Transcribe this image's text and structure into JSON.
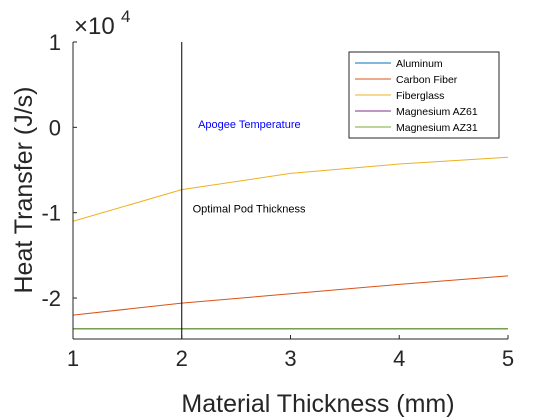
{
  "chart_data": {
    "type": "line",
    "title": "",
    "xlabel": "Material Thickness (mm)",
    "ylabel": "Heat Transfer (J/s)",
    "exponent": {
      "base": "×10",
      "power": "4"
    },
    "xlim": [
      1,
      5
    ],
    "ylim": [
      -24800,
      10000
    ],
    "scale_factor": 10000,
    "xticks": [
      1,
      2,
      3,
      4,
      5
    ],
    "yticks": [
      -20000,
      -10000,
      0,
      10000
    ],
    "xtick_labels": [
      "1",
      "2",
      "3",
      "4",
      "5"
    ],
    "ytick_labels": [
      "-2",
      "-1",
      "0",
      "1"
    ],
    "grid": false,
    "legend_position": "top-right",
    "x": [
      1,
      2,
      3,
      4,
      5
    ],
    "series": [
      {
        "name": "Aluminum",
        "color": "#0072BD",
        "values": [
          -23600,
          -23600,
          -23600,
          -23600,
          -23600
        ]
      },
      {
        "name": "Carbon Fiber",
        "color": "#D95319",
        "values": [
          -22000,
          -20600,
          -19500,
          -18400,
          -17400
        ]
      },
      {
        "name": "Fiberglass",
        "color": "#EDB120",
        "values": [
          -11000,
          -7300,
          -5400,
          -4300,
          -3500
        ]
      },
      {
        "name": "Magnesium AZ61",
        "color": "#7E2F8E",
        "values": [
          -23600,
          -23600,
          -23600,
          -23600,
          -23600
        ]
      },
      {
        "name": "Magnesium AZ31",
        "color": "#77AC30",
        "values": [
          -23600,
          -23600,
          -23600,
          -23600,
          -23600
        ]
      }
    ],
    "vline": {
      "x": 2,
      "color": "#000000"
    },
    "annotations": [
      {
        "text": "Apogee Temperature",
        "x": 2.15,
        "y": -100,
        "color": "#0000FF"
      },
      {
        "text": "Optimal Pod Thickness",
        "x": 2.1,
        "y": -10000,
        "color": "#000000"
      }
    ]
  }
}
